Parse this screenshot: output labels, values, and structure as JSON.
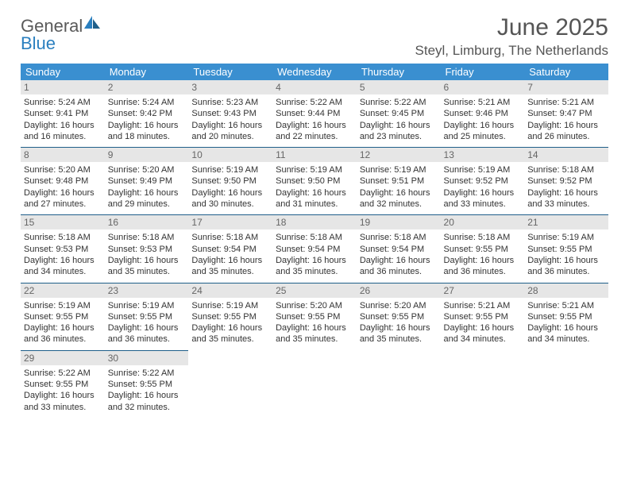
{
  "logo": {
    "text1": "General",
    "text2": "Blue"
  },
  "title": "June 2025",
  "subtitle": "Steyl, Limburg, The Netherlands",
  "colors": {
    "header_bg": "#3a8fd0",
    "header_fg": "#ffffff",
    "daynum_bg": "#e6e6e6",
    "rule": "#1f5f8a",
    "logo_general": "#5a5a5a",
    "logo_blue": "#2a7fbf"
  },
  "weekdays": [
    "Sunday",
    "Monday",
    "Tuesday",
    "Wednesday",
    "Thursday",
    "Friday",
    "Saturday"
  ],
  "days": [
    {
      "n": "1",
      "sr": "5:24 AM",
      "ss": "9:41 PM",
      "dl": "16 hours and 16 minutes."
    },
    {
      "n": "2",
      "sr": "5:24 AM",
      "ss": "9:42 PM",
      "dl": "16 hours and 18 minutes."
    },
    {
      "n": "3",
      "sr": "5:23 AM",
      "ss": "9:43 PM",
      "dl": "16 hours and 20 minutes."
    },
    {
      "n": "4",
      "sr": "5:22 AM",
      "ss": "9:44 PM",
      "dl": "16 hours and 22 minutes."
    },
    {
      "n": "5",
      "sr": "5:22 AM",
      "ss": "9:45 PM",
      "dl": "16 hours and 23 minutes."
    },
    {
      "n": "6",
      "sr": "5:21 AM",
      "ss": "9:46 PM",
      "dl": "16 hours and 25 minutes."
    },
    {
      "n": "7",
      "sr": "5:21 AM",
      "ss": "9:47 PM",
      "dl": "16 hours and 26 minutes."
    },
    {
      "n": "8",
      "sr": "5:20 AM",
      "ss": "9:48 PM",
      "dl": "16 hours and 27 minutes."
    },
    {
      "n": "9",
      "sr": "5:20 AM",
      "ss": "9:49 PM",
      "dl": "16 hours and 29 minutes."
    },
    {
      "n": "10",
      "sr": "5:19 AM",
      "ss": "9:50 PM",
      "dl": "16 hours and 30 minutes."
    },
    {
      "n": "11",
      "sr": "5:19 AM",
      "ss": "9:50 PM",
      "dl": "16 hours and 31 minutes."
    },
    {
      "n": "12",
      "sr": "5:19 AM",
      "ss": "9:51 PM",
      "dl": "16 hours and 32 minutes."
    },
    {
      "n": "13",
      "sr": "5:19 AM",
      "ss": "9:52 PM",
      "dl": "16 hours and 33 minutes."
    },
    {
      "n": "14",
      "sr": "5:18 AM",
      "ss": "9:52 PM",
      "dl": "16 hours and 33 minutes."
    },
    {
      "n": "15",
      "sr": "5:18 AM",
      "ss": "9:53 PM",
      "dl": "16 hours and 34 minutes."
    },
    {
      "n": "16",
      "sr": "5:18 AM",
      "ss": "9:53 PM",
      "dl": "16 hours and 35 minutes."
    },
    {
      "n": "17",
      "sr": "5:18 AM",
      "ss": "9:54 PM",
      "dl": "16 hours and 35 minutes."
    },
    {
      "n": "18",
      "sr": "5:18 AM",
      "ss": "9:54 PM",
      "dl": "16 hours and 35 minutes."
    },
    {
      "n": "19",
      "sr": "5:18 AM",
      "ss": "9:54 PM",
      "dl": "16 hours and 36 minutes."
    },
    {
      "n": "20",
      "sr": "5:18 AM",
      "ss": "9:55 PM",
      "dl": "16 hours and 36 minutes."
    },
    {
      "n": "21",
      "sr": "5:19 AM",
      "ss": "9:55 PM",
      "dl": "16 hours and 36 minutes."
    },
    {
      "n": "22",
      "sr": "5:19 AM",
      "ss": "9:55 PM",
      "dl": "16 hours and 36 minutes."
    },
    {
      "n": "23",
      "sr": "5:19 AM",
      "ss": "9:55 PM",
      "dl": "16 hours and 36 minutes."
    },
    {
      "n": "24",
      "sr": "5:19 AM",
      "ss": "9:55 PM",
      "dl": "16 hours and 35 minutes."
    },
    {
      "n": "25",
      "sr": "5:20 AM",
      "ss": "9:55 PM",
      "dl": "16 hours and 35 minutes."
    },
    {
      "n": "26",
      "sr": "5:20 AM",
      "ss": "9:55 PM",
      "dl": "16 hours and 35 minutes."
    },
    {
      "n": "27",
      "sr": "5:21 AM",
      "ss": "9:55 PM",
      "dl": "16 hours and 34 minutes."
    },
    {
      "n": "28",
      "sr": "5:21 AM",
      "ss": "9:55 PM",
      "dl": "16 hours and 34 minutes."
    },
    {
      "n": "29",
      "sr": "5:22 AM",
      "ss": "9:55 PM",
      "dl": "16 hours and 33 minutes."
    },
    {
      "n": "30",
      "sr": "5:22 AM",
      "ss": "9:55 PM",
      "dl": "16 hours and 32 minutes."
    }
  ],
  "labels": {
    "sunrise": "Sunrise: ",
    "sunset": "Sunset: ",
    "daylight": "Daylight: "
  }
}
